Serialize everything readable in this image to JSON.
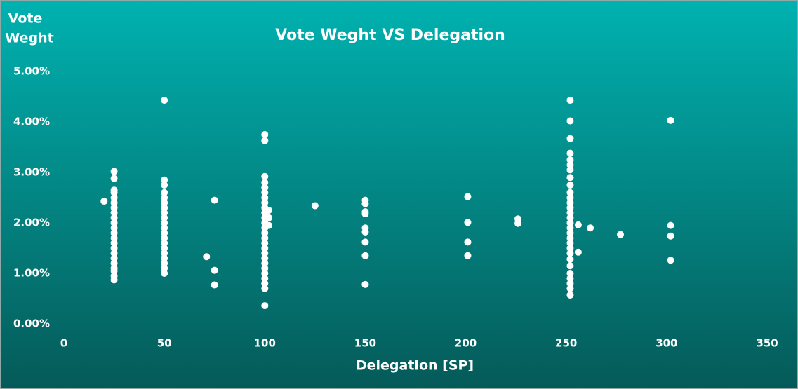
{
  "chart_data": {
    "type": "scatter",
    "title": "Vote Weght VS Delegation",
    "ylabel": [
      "Vote",
      "Weght"
    ],
    "xlabel": "Delegation [SP]",
    "xlim": [
      0,
      350
    ],
    "xticks": [
      0,
      50,
      100,
      150,
      200,
      250,
      300,
      350
    ],
    "ylim": [
      0,
      5
    ],
    "yticks": [
      {
        "value": 0,
        "label": "0.00%"
      },
      {
        "value": 1,
        "label": "1.00%"
      },
      {
        "value": 2,
        "label": "2.00%"
      },
      {
        "value": 3,
        "label": "3.00%"
      },
      {
        "value": 4,
        "label": "4.00%"
      },
      {
        "value": 5,
        "label": "5.00%"
      }
    ],
    "grid": false,
    "color": "#ffffff",
    "series": [
      {
        "color": "#ffffff",
        "x": [
          20,
          25,
          25,
          25,
          25,
          25,
          25,
          25,
          25,
          25,
          25,
          25,
          25,
          25,
          25,
          25,
          25,
          25,
          25,
          25,
          25,
          25,
          25,
          50,
          50,
          50,
          50,
          50,
          50,
          50,
          50,
          50,
          50,
          50,
          50,
          50,
          50,
          50,
          50,
          50,
          50,
          50,
          50,
          71,
          75,
          75,
          75,
          100,
          100,
          100,
          100,
          100,
          100,
          100,
          100,
          100,
          100,
          100,
          100,
          100,
          100,
          100,
          100,
          100,
          100,
          100,
          100,
          100,
          100,
          100,
          100,
          100,
          100,
          102,
          102,
          102,
          125,
          150,
          150,
          150,
          150,
          150,
          150,
          150,
          150,
          150,
          201,
          201,
          201,
          201,
          226,
          226,
          252,
          252,
          252,
          252,
          252,
          252,
          252,
          252,
          252,
          252,
          252,
          252,
          252,
          252,
          252,
          252,
          252,
          252,
          252,
          252,
          252,
          252,
          252,
          252,
          252,
          252,
          252,
          252,
          252,
          256,
          256,
          262,
          277,
          302,
          302,
          302,
          302
        ],
        "values": [
          2.43,
          3.02,
          2.88,
          2.65,
          2.6,
          2.5,
          2.4,
          2.3,
          2.2,
          2.1,
          2.0,
          1.9,
          1.8,
          1.7,
          1.6,
          1.5,
          1.4,
          1.3,
          1.2,
          1.1,
          1.05,
          0.95,
          0.87,
          4.43,
          2.85,
          2.75,
          2.6,
          2.5,
          2.4,
          2.3,
          2.2,
          2.1,
          2.0,
          1.9,
          1.8,
          1.7,
          1.6,
          1.5,
          1.4,
          1.3,
          1.2,
          1.1,
          1.0,
          1.33,
          2.45,
          1.06,
          0.77,
          3.75,
          3.63,
          2.92,
          2.8,
          2.7,
          2.6,
          2.5,
          2.4,
          2.3,
          2.2,
          2.1,
          2.0,
          1.9,
          1.8,
          1.7,
          1.6,
          1.5,
          1.4,
          1.3,
          1.2,
          1.1,
          1.0,
          0.9,
          0.8,
          0.7,
          0.36,
          2.25,
          1.95,
          2.1,
          2.34,
          2.45,
          2.38,
          2.22,
          2.18,
          1.9,
          1.82,
          1.62,
          1.35,
          0.78,
          2.52,
          2.01,
          1.62,
          1.35,
          2.08,
          1.99,
          4.43,
          4.02,
          3.67,
          3.38,
          3.25,
          3.15,
          3.05,
          2.9,
          2.75,
          2.6,
          2.5,
          2.4,
          2.3,
          2.2,
          2.1,
          2.0,
          1.9,
          1.8,
          1.7,
          1.6,
          1.5,
          1.4,
          1.28,
          1.15,
          1.0,
          0.9,
          0.8,
          0.7,
          0.57,
          1.96,
          1.42,
          1.9,
          1.77,
          4.03,
          1.95,
          1.74,
          1.26
        ]
      }
    ]
  }
}
